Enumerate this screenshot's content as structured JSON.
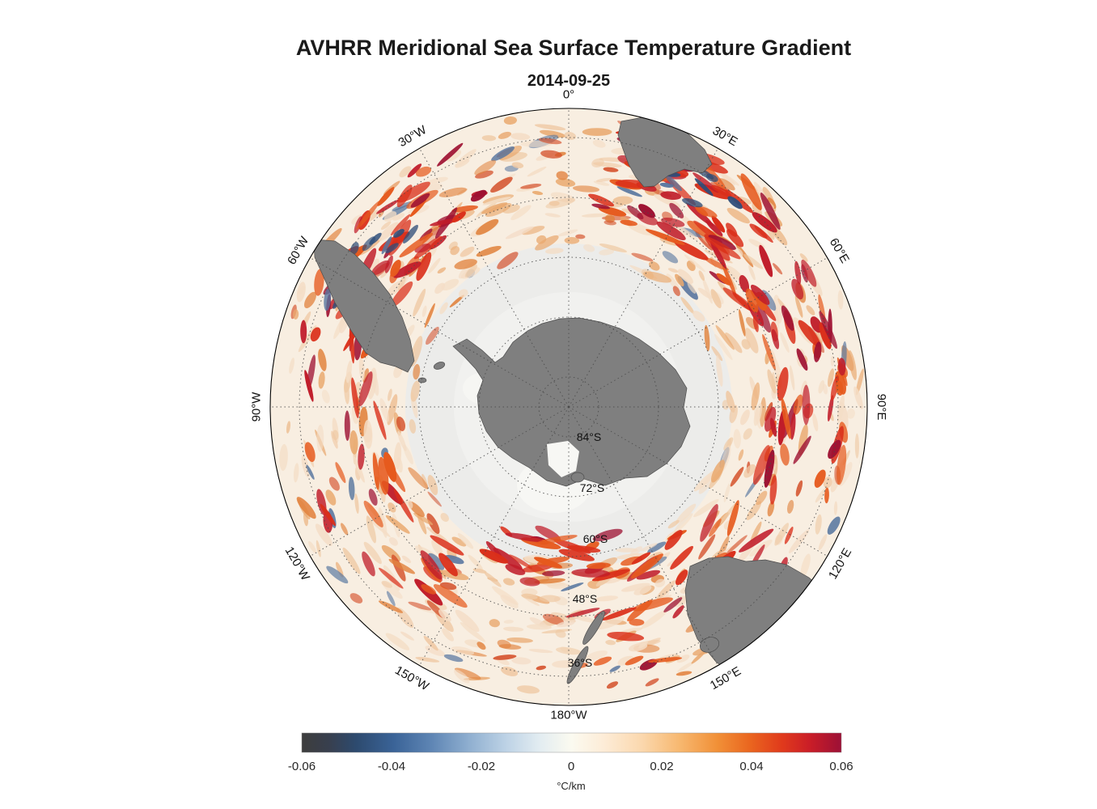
{
  "figure": {
    "title": "AVHRR Meridional Sea Surface Temperature Gradient",
    "subtitle": "2014-09-25"
  },
  "map": {
    "meridians": [
      "0°",
      "30°E",
      "60°E",
      "90°E",
      "120°E",
      "150°E",
      "180°W",
      "150°W",
      "120°W",
      "90°W",
      "60°W",
      "30°W"
    ],
    "parallels": [
      "84°S",
      "72°S",
      "60°S",
      "48°S",
      "36°S"
    ]
  },
  "colorbar": {
    "ticks": [
      "-0.06",
      "-0.04",
      "-0.02",
      "0",
      "0.02",
      "0.04",
      "0.06"
    ],
    "unit": "°C/km"
  },
  "colors": {
    "ocean": "#f8eee1",
    "ice": "#ececea",
    "ice_inner": "#f1f1ef",
    "ice_white": "#f7f7f4",
    "land": "#7f7f7f",
    "outline": "#000000"
  },
  "field_palette": {
    "base": [
      "#f4ddc6",
      "#efc9a4",
      "#e9a86e",
      "#e1823d",
      "#d4502a"
    ],
    "strong": [
      "#e65a1e",
      "#da2f1a",
      "#c01d2a",
      "#9e1132"
    ],
    "blue": [
      "#55749e",
      "#2e4d79"
    ]
  },
  "chart_data": {
    "type": "heatmap",
    "title": "AVHRR Meridional Sea Surface Temperature Gradient",
    "date": "2014-09-25",
    "projection": "south polar stereographic (Antarctica centered)",
    "region": "Southern Ocean, 90°S to ~30°S",
    "variable": "meridional sea surface temperature gradient from AVHRR",
    "units": "°C/km",
    "value_range": [
      -0.06,
      0.06
    ],
    "colorbar": {
      "orientation": "horizontal",
      "position": "bottom",
      "min": -0.06,
      "max": 0.06,
      "ticks": [
        -0.06,
        -0.04,
        -0.02,
        0,
        0.02,
        0.04,
        0.06
      ],
      "unit_label": "°C/km",
      "colormap_stops": [
        [
          "0%",
          "#3d3d3d"
        ],
        [
          "5%",
          "#383f4e"
        ],
        [
          "10%",
          "#2d4a6e"
        ],
        [
          "17%",
          "#3a6397"
        ],
        [
          "24%",
          "#5e85b4"
        ],
        [
          "31%",
          "#8fafd0"
        ],
        [
          "38%",
          "#bed3e6"
        ],
        [
          "44%",
          "#e2ecf1"
        ],
        [
          "50%",
          "#fbfaf0"
        ],
        [
          "56%",
          "#fdecd7"
        ],
        [
          "63%",
          "#fbd8ae"
        ],
        [
          "70%",
          "#f7b870"
        ],
        [
          "77%",
          "#f19037"
        ],
        [
          "83%",
          "#ea661f"
        ],
        [
          "89%",
          "#e03a1c"
        ],
        [
          "94%",
          "#cb1e27"
        ],
        [
          "100%",
          "#9c1036"
        ]
      ]
    },
    "graticule": {
      "meridian_interval_deg": 30,
      "meridian_labels": [
        "0°",
        "30°E",
        "60°E",
        "90°E",
        "120°E",
        "150°E",
        "180°W",
        "150°W",
        "120°W",
        "90°W",
        "60°W",
        "30°W"
      ],
      "parallel_interval_deg": 12,
      "parallel_labels": [
        "84°S",
        "72°S",
        "60°S",
        "48°S",
        "36°S"
      ]
    },
    "qualitative_features": [
      "strong positive (red) SST-gradient filaments along the Antarctic Circumpolar Current band",
      "intense eddy field with some negative (blue) patches south of Africa (Agulhas retroflection) and in the SW Atlantic (Brazil–Malvinas confluence)",
      "pale gray sea-ice / no-data zone surrounding Antarctica",
      "land masses in dark gray: Antarctica, southern South America, southern Africa, Australia, Tasmania, New Zealand"
    ]
  }
}
